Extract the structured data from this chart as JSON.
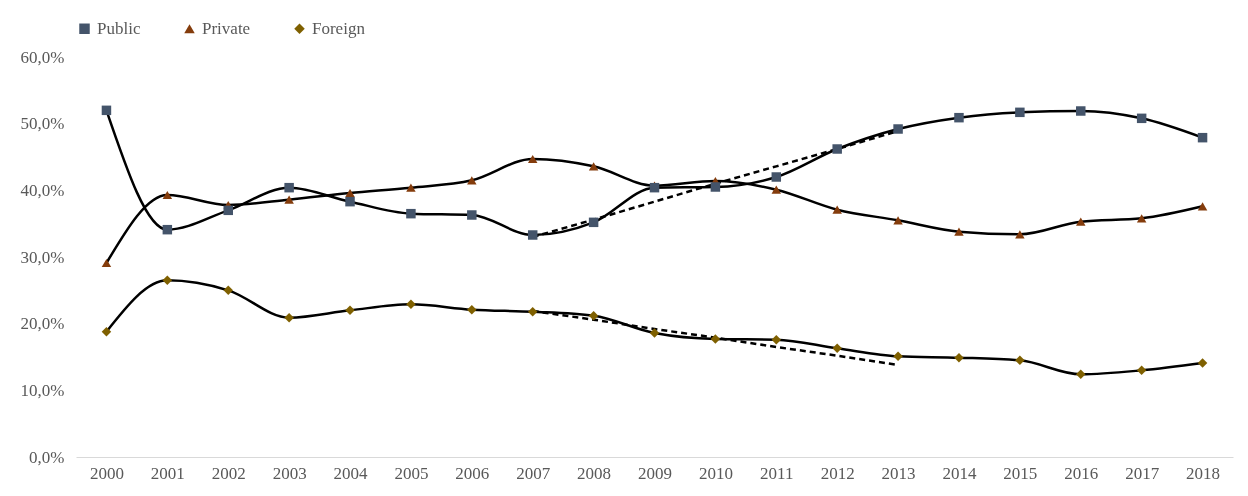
{
  "chart_data": {
    "type": "line",
    "categories": [
      "2000",
      "2001",
      "2002",
      "2003",
      "2004",
      "2005",
      "2006",
      "2007",
      "2008",
      "2009",
      "2010",
      "2011",
      "2012",
      "2013",
      "2014",
      "2015",
      "2016",
      "2017",
      "2018"
    ],
    "ylim": [
      0,
      60
    ],
    "yticks": [
      {
        "value": 0,
        "label": "0,0%"
      },
      {
        "value": 10,
        "label": "10,0%"
      },
      {
        "value": 20,
        "label": "20,0%"
      },
      {
        "value": 30,
        "label": "30,0%"
      },
      {
        "value": 40,
        "label": "40,0%"
      },
      {
        "value": 50,
        "label": "50,0%"
      },
      {
        "value": 60,
        "label": "60,0%"
      }
    ],
    "grid": false,
    "legend": "top",
    "line_style": "solid",
    "series": [
      {
        "name": "Public",
        "color": "#44546a",
        "marker": "square",
        "values": [
          52.0,
          34.1,
          37.0,
          40.4,
          38.3,
          36.5,
          36.3,
          33.3,
          35.2,
          40.4,
          40.5,
          42.0,
          46.2,
          49.2,
          50.9,
          51.7,
          51.9,
          50.8,
          47.9
        ]
      },
      {
        "name": "Private",
        "color": "#843c0c",
        "marker": "triangle",
        "values": [
          29.1,
          39.3,
          37.8,
          38.6,
          39.6,
          40.4,
          41.5,
          44.7,
          43.6,
          40.7,
          41.4,
          40.1,
          37.1,
          35.5,
          33.8,
          33.4,
          35.3,
          35.8,
          37.6
        ]
      },
      {
        "name": "Foreign",
        "color": "#7f6000",
        "marker": "diamond",
        "values": [
          18.8,
          26.5,
          25.0,
          20.9,
          22.0,
          22.9,
          22.1,
          21.8,
          21.2,
          18.6,
          17.7,
          17.6,
          16.3,
          15.1,
          14.9,
          14.5,
          12.4,
          13.0,
          14.1
        ]
      },
      {
        "type": "line",
        "color": "#000000",
        "line_style": "dashed",
        "values": [
          null,
          null,
          null,
          null,
          null,
          null,
          null,
          33.0,
          35.6,
          38.3,
          41.0,
          43.6,
          46.2,
          48.9,
          null,
          null,
          null,
          null,
          null
        ]
      },
      {
        "type": "line",
        "color": "#000000",
        "line_style": "dashed",
        "values": [
          null,
          null,
          null,
          null,
          null,
          null,
          null,
          21.9,
          20.6,
          19.2,
          17.9,
          16.5,
          15.2,
          13.8,
          null,
          null,
          null,
          null,
          null
        ]
      }
    ]
  }
}
